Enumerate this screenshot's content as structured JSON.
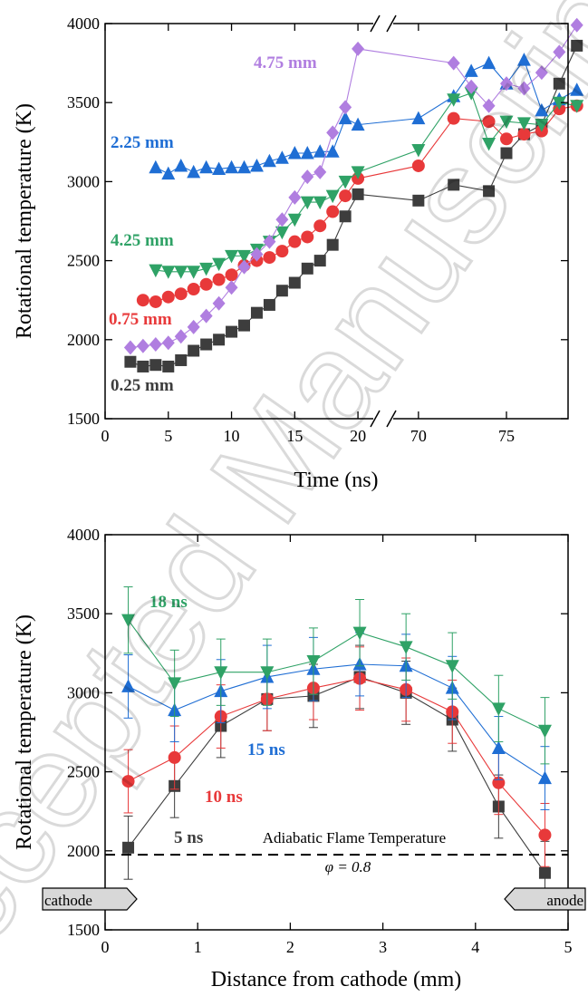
{
  "chart_data": [
    {
      "type": "scatter",
      "xlabel": "Time (ns)",
      "ylabel": "Rotational temperature (K)",
      "ylim": [
        1500,
        4000
      ],
      "x_break": {
        "segments": [
          [
            0,
            22
          ],
          [
            68,
            78.5
          ]
        ],
        "break_at": [
          22,
          68
        ]
      },
      "x_ticks": [
        0,
        5,
        10,
        15,
        20,
        70,
        75
      ],
      "y_ticks": [
        1500,
        2000,
        2500,
        3000,
        3500,
        4000
      ],
      "tick_labels_x": [
        "0",
        "5",
        "10",
        "15",
        "20",
        "70",
        "75"
      ],
      "tick_labels_y": [
        "1500",
        "2000",
        "2500",
        "3000",
        "3500",
        "4000"
      ],
      "series": [
        {
          "name": "0.25 mm",
          "color": "#3d3d3d",
          "marker": "square",
          "x": [
            2,
            3,
            4,
            5,
            6,
            7,
            8,
            9,
            10,
            11,
            12,
            13,
            14,
            15,
            16,
            17,
            18,
            19,
            20,
            70,
            72,
            74,
            75,
            76,
            77,
            78,
            79
          ],
          "y": [
            1860,
            1830,
            1840,
            1830,
            1870,
            1930,
            1970,
            2000,
            2050,
            2090,
            2170,
            2220,
            2310,
            2360,
            2450,
            2500,
            2600,
            2780,
            2920,
            2880,
            2980,
            2940,
            3180,
            3300,
            3360,
            3620,
            3860
          ]
        },
        {
          "name": "0.75 mm",
          "color": "#e8393a",
          "marker": "circle",
          "x": [
            3,
            4,
            5,
            6,
            7,
            8,
            9,
            10,
            11,
            12,
            13,
            14,
            15,
            16,
            17,
            18,
            19,
            20,
            70,
            72,
            74,
            75,
            76,
            77,
            78,
            79
          ],
          "y": [
            2250,
            2240,
            2270,
            2290,
            2320,
            2350,
            2380,
            2410,
            2470,
            2500,
            2520,
            2560,
            2620,
            2650,
            2720,
            2810,
            2910,
            3020,
            3100,
            3400,
            3380,
            3270,
            3300,
            3320,
            3460,
            3480
          ]
        },
        {
          "name": "2.25 mm",
          "color": "#1f6ed4",
          "marker": "triangle-up",
          "x": [
            4,
            5,
            6,
            7,
            8,
            9,
            10,
            11,
            12,
            13,
            14,
            15,
            16,
            17,
            18,
            19,
            20,
            70,
            72,
            73,
            74,
            75,
            76,
            77,
            78,
            79
          ],
          "y": [
            3090,
            3050,
            3100,
            3060,
            3090,
            3080,
            3090,
            3090,
            3100,
            3130,
            3150,
            3180,
            3180,
            3190,
            3190,
            3400,
            3360,
            3400,
            3540,
            3700,
            3750,
            3620,
            3770,
            3450,
            3520,
            3580
          ]
        },
        {
          "name": "4.25 mm",
          "color": "#2fa266",
          "marker": "triangle-down",
          "x": [
            4,
            5,
            6,
            7,
            8,
            9,
            10,
            11,
            12,
            13,
            14,
            15,
            16,
            17,
            18,
            19,
            20,
            70,
            72,
            73,
            74,
            75,
            76,
            77,
            78,
            79
          ],
          "y": [
            2440,
            2430,
            2430,
            2430,
            2450,
            2480,
            2530,
            2530,
            2570,
            2620,
            2680,
            2760,
            2870,
            2870,
            2910,
            3000,
            3060,
            3200,
            3520,
            3560,
            3240,
            3380,
            3370,
            3360,
            3500,
            3480
          ]
        },
        {
          "name": "4.75 mm",
          "color": "#b07ee0",
          "marker": "diamond",
          "x": [
            2,
            3,
            4,
            5,
            6,
            7,
            8,
            9,
            10,
            11,
            12,
            13,
            14,
            15,
            16,
            17,
            18,
            19,
            20,
            72,
            73,
            74,
            75,
            76,
            77,
            78,
            79
          ],
          "y": [
            1950,
            1960,
            1970,
            1980,
            2020,
            2080,
            2150,
            2230,
            2330,
            2460,
            2540,
            2620,
            2760,
            2900,
            3030,
            3060,
            3310,
            3470,
            3840,
            3750,
            3600,
            3480,
            3620,
            3590,
            3690,
            3820,
            3990
          ]
        }
      ]
    },
    {
      "type": "scatter",
      "xlabel": "Distance from cathode (mm)",
      "ylabel": "Rotational temperature (K)",
      "xlim": [
        0,
        5
      ],
      "ylim": [
        1500,
        4000
      ],
      "x_ticks": [
        0,
        1,
        2,
        3,
        4,
        5
      ],
      "y_ticks": [
        1500,
        2000,
        2500,
        3000,
        3500,
        4000
      ],
      "tick_labels_x": [
        "0",
        "1",
        "2",
        "3",
        "4",
        "5"
      ],
      "tick_labels_y": [
        "1500",
        "2000",
        "2500",
        "3000",
        "3500",
        "4000"
      ],
      "series": [
        {
          "name": "5 ns",
          "color": "#3d3d3d",
          "marker": "square",
          "x": [
            0.25,
            0.75,
            1.25,
            1.75,
            2.25,
            2.75,
            3.25,
            3.75,
            4.25,
            4.75
          ],
          "y": [
            2020,
            2410,
            2790,
            2960,
            2980,
            3100,
            3000,
            2830,
            2280,
            1860
          ],
          "err": [
            200,
            200,
            200,
            200,
            200,
            200,
            200,
            200,
            200,
            200
          ]
        },
        {
          "name": "10 ns",
          "color": "#e8393a",
          "marker": "circle",
          "x": [
            0.25,
            0.75,
            1.25,
            1.75,
            2.25,
            2.75,
            3.25,
            3.75,
            4.25,
            4.75
          ],
          "y": [
            2440,
            2590,
            2850,
            2960,
            3030,
            3090,
            3020,
            2880,
            2430,
            2100
          ],
          "err": [
            200,
            200,
            200,
            200,
            200,
            200,
            200,
            200,
            200,
            200
          ]
        },
        {
          "name": "15 ns",
          "color": "#1f6ed4",
          "marker": "triangle-up",
          "x": [
            0.25,
            0.75,
            1.25,
            1.75,
            2.25,
            2.75,
            3.25,
            3.75,
            4.25,
            4.75
          ],
          "y": [
            3040,
            2890,
            3010,
            3100,
            3150,
            3180,
            3170,
            3030,
            2650,
            2460
          ],
          "err": [
            200,
            200,
            200,
            200,
            200,
            200,
            200,
            200,
            200,
            200
          ]
        },
        {
          "name": "18 ns",
          "color": "#2fa266",
          "marker": "triangle-down",
          "x": [
            0.25,
            0.75,
            1.25,
            1.75,
            2.25,
            2.75,
            3.25,
            3.75,
            4.25,
            4.75
          ],
          "y": [
            3460,
            3060,
            3130,
            3130,
            3200,
            3380,
            3290,
            3170,
            2900,
            2760
          ],
          "err": [
            210,
            210,
            210,
            210,
            210,
            210,
            210,
            210,
            210,
            210
          ]
        }
      ],
      "reference_line": {
        "label": "Adiabatic Flame Temperature",
        "sublabel": "φ = 0.8",
        "y": 1975
      },
      "electrode_labels": {
        "left": "cathode",
        "right": "anode"
      }
    }
  ],
  "watermark": "Accepted Manuscript"
}
